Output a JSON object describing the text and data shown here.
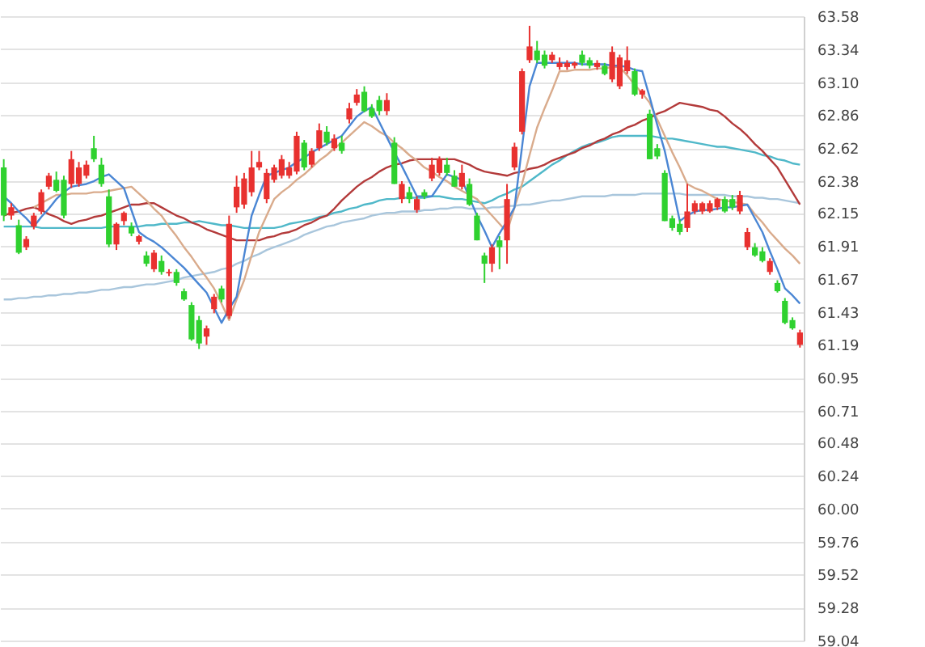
{
  "chart_data": {
    "type": "candlestick",
    "ylim": [
      59.04,
      63.58
    ],
    "yticks": [
      59.04,
      59.28,
      59.52,
      59.76,
      {
        "value": 60,
        "label": "60.00"
      },
      60.24,
      60.48,
      60.71,
      60.95,
      61.19,
      61.43,
      61.67,
      61.91,
      62.15,
      62.38,
      62.62,
      62.86,
      {
        "value": 63.1,
        "label": "63.10"
      },
      63.34,
      63.58
    ],
    "grid": "y",
    "categories": [
      null,
      null,
      null,
      null,
      null,
      null,
      null,
      null,
      null,
      null,
      null,
      null,
      null,
      null,
      null,
      null,
      null,
      null,
      null,
      null,
      null,
      null,
      null,
      null,
      null,
      null,
      null,
      null,
      null,
      null,
      null,
      null,
      null,
      null,
      null,
      null,
      null,
      null,
      null,
      null,
      null,
      null,
      null,
      null,
      null,
      null,
      null,
      null,
      null,
      null,
      null,
      null,
      null,
      null,
      null,
      null,
      null,
      null,
      null,
      null,
      null,
      null,
      null,
      null,
      null,
      null,
      null,
      null,
      null,
      null,
      null,
      null,
      null,
      null,
      null,
      null,
      null,
      null,
      null,
      null,
      null,
      null,
      null,
      null,
      null,
      null,
      null,
      null,
      null,
      null,
      null,
      null,
      null,
      null,
      null,
      null,
      null,
      null,
      null,
      null,
      null,
      null,
      null,
      null,
      null,
      null,
      null
    ],
    "ohlc": [
      [
        62.48,
        62.54,
        62.09,
        62.13
      ],
      [
        62.13,
        62.22,
        62.1,
        62.19
      ],
      [
        62.06,
        62.1,
        61.85,
        61.86
      ],
      [
        61.9,
        61.98,
        61.88,
        61.96
      ],
      [
        62.05,
        62.15,
        62.03,
        62.13
      ],
      [
        62.16,
        62.32,
        62.14,
        62.3
      ],
      [
        62.34,
        62.44,
        62.32,
        62.42
      ],
      [
        62.39,
        62.45,
        62.3,
        62.31
      ],
      [
        62.39,
        62.42,
        62.11,
        62.13
      ],
      [
        62.36,
        62.6,
        62.33,
        62.54
      ],
      [
        62.36,
        62.52,
        62.34,
        62.48
      ],
      [
        62.42,
        62.53,
        62.4,
        62.5
      ],
      [
        62.62,
        62.71,
        62.52,
        62.54
      ],
      [
        62.5,
        62.55,
        62.34,
        62.36
      ],
      [
        62.27,
        62.32,
        61.9,
        61.92
      ],
      [
        61.92,
        62.08,
        61.88,
        62.07
      ],
      [
        62.09,
        62.16,
        62.06,
        62.15
      ],
      [
        62.05,
        62.08,
        61.98,
        62.0
      ],
      [
        61.94,
        61.99,
        61.92,
        61.98
      ],
      [
        61.84,
        61.87,
        61.76,
        61.78
      ],
      [
        61.74,
        61.88,
        61.72,
        61.86
      ],
      [
        61.8,
        61.84,
        61.7,
        61.72
      ],
      [
        61.71,
        61.74,
        61.69,
        61.72
      ],
      [
        61.72,
        61.74,
        61.62,
        61.64
      ],
      [
        61.58,
        61.6,
        61.51,
        61.52
      ],
      [
        61.48,
        61.5,
        61.22,
        61.23
      ],
      [
        61.37,
        61.4,
        61.16,
        61.2
      ],
      [
        61.25,
        61.33,
        61.19,
        61.31
      ],
      [
        61.45,
        61.56,
        61.42,
        61.54
      ],
      [
        61.6,
        61.62,
        61.5,
        61.52
      ],
      [
        61.4,
        62.13,
        61.38,
        62.07
      ],
      [
        62.19,
        62.42,
        62.15,
        62.34
      ],
      [
        62.21,
        62.44,
        62.18,
        62.4
      ],
      [
        62.3,
        62.6,
        62.27,
        62.48
      ],
      [
        62.48,
        62.6,
        62.46,
        62.52
      ],
      [
        62.25,
        62.47,
        62.22,
        62.44
      ],
      [
        62.39,
        62.5,
        62.37,
        62.48
      ],
      [
        62.42,
        62.57,
        62.4,
        62.54
      ],
      [
        62.42,
        62.52,
        62.4,
        62.48
      ],
      [
        62.45,
        62.74,
        62.43,
        62.71
      ],
      [
        62.66,
        62.68,
        62.46,
        62.48
      ],
      [
        62.5,
        62.62,
        62.48,
        62.6
      ],
      [
        62.62,
        62.8,
        62.6,
        62.75
      ],
      [
        62.74,
        62.78,
        62.64,
        62.66
      ],
      [
        62.62,
        62.72,
        62.6,
        62.69
      ],
      [
        62.66,
        62.71,
        62.58,
        62.6
      ],
      [
        62.83,
        62.95,
        62.8,
        62.91
      ],
      [
        62.95,
        63.05,
        62.93,
        63.01
      ],
      [
        63.03,
        63.07,
        62.88,
        62.89
      ],
      [
        62.91,
        62.94,
        62.84,
        62.85
      ],
      [
        62.97,
        63.0,
        62.86,
        62.89
      ],
      [
        62.89,
        63.02,
        62.86,
        62.97
      ],
      [
        62.66,
        62.7,
        62.36,
        62.36
      ],
      [
        62.25,
        62.38,
        62.22,
        62.36
      ],
      [
        62.3,
        62.34,
        62.22,
        62.25
      ],
      [
        62.17,
        62.27,
        62.15,
        62.25
      ],
      [
        62.3,
        62.32,
        62.25,
        62.27
      ],
      [
        62.4,
        62.55,
        62.38,
        62.5
      ],
      [
        62.44,
        62.56,
        62.42,
        62.54
      ],
      [
        62.5,
        62.55,
        62.42,
        62.44
      ],
      [
        62.42,
        62.46,
        62.34,
        62.34
      ],
      [
        62.34,
        62.5,
        62.32,
        62.44
      ],
      [
        62.36,
        62.4,
        62.2,
        62.21
      ],
      [
        62.13,
        62.15,
        61.95,
        61.95
      ],
      [
        61.84,
        61.86,
        61.64,
        61.78
      ],
      [
        61.78,
        61.92,
        61.72,
        61.9
      ],
      [
        61.95,
        61.98,
        61.74,
        61.9
      ],
      [
        61.95,
        62.36,
        61.78,
        62.25
      ],
      [
        62.48,
        62.66,
        62.46,
        62.63
      ],
      [
        62.74,
        63.2,
        62.72,
        63.18
      ],
      [
        63.26,
        63.51,
        63.24,
        63.36
      ],
      [
        63.33,
        63.4,
        63.24,
        63.26
      ],
      [
        63.3,
        63.33,
        63.2,
        63.22
      ],
      [
        63.26,
        63.32,
        63.24,
        63.3
      ],
      [
        63.21,
        63.28,
        63.19,
        63.24
      ],
      [
        63.21,
        63.26,
        63.19,
        63.24
      ],
      [
        63.22,
        63.25,
        63.2,
        63.24
      ],
      [
        63.3,
        63.33,
        63.22,
        63.24
      ],
      [
        63.26,
        63.28,
        63.2,
        63.22
      ],
      [
        63.21,
        63.26,
        63.19,
        63.24
      ],
      [
        63.22,
        63.24,
        63.15,
        63.16
      ],
      [
        63.12,
        63.36,
        63.1,
        63.32
      ],
      [
        63.07,
        63.3,
        63.05,
        63.28
      ],
      [
        63.18,
        63.36,
        63.16,
        63.26
      ],
      [
        63.18,
        63.2,
        63.0,
        63.01
      ],
      [
        63.01,
        63.05,
        62.98,
        63.04
      ],
      [
        62.87,
        62.9,
        62.54,
        62.54
      ],
      [
        62.62,
        62.65,
        62.54,
        62.56
      ],
      [
        62.44,
        62.46,
        62.09,
        62.09
      ],
      [
        62.11,
        62.13,
        62.02,
        62.04
      ],
      [
        62.07,
        62.1,
        61.99,
        62.01
      ],
      [
        62.04,
        62.36,
        62.01,
        62.16
      ],
      [
        62.16,
        62.24,
        62.14,
        62.22
      ],
      [
        62.16,
        62.23,
        62.14,
        62.22
      ],
      [
        62.16,
        62.24,
        62.15,
        62.22
      ],
      [
        62.19,
        62.26,
        62.17,
        62.25
      ],
      [
        62.25,
        62.27,
        62.15,
        62.16
      ],
      [
        62.25,
        62.28,
        62.17,
        62.19
      ],
      [
        62.16,
        62.31,
        62.14,
        62.28
      ],
      [
        61.9,
        62.04,
        61.88,
        62.01
      ],
      [
        61.9,
        61.93,
        61.83,
        61.84
      ],
      [
        61.87,
        61.9,
        61.79,
        61.8
      ],
      [
        61.72,
        61.82,
        61.7,
        61.8
      ],
      [
        61.64,
        61.66,
        61.57,
        61.58
      ],
      [
        61.51,
        61.53,
        61.34,
        61.35
      ],
      [
        61.37,
        61.39,
        61.3,
        61.31
      ],
      [
        61.19,
        61.3,
        61.17,
        61.28
      ]
    ],
    "colors": [
      "#2fd12f",
      "#e8312f",
      "#2fd12f",
      "#e8312f",
      "#e8312f",
      "#e8312f",
      "#e8312f",
      "#2fd12f",
      "#2fd12f",
      "#e8312f",
      "#e8312f",
      "#e8312f",
      "#2fd12f",
      "#2fd12f",
      "#2fd12f",
      "#e8312f",
      "#e8312f",
      "#2fd12f",
      "#e8312f",
      "#2fd12f",
      "#e8312f",
      "#2fd12f",
      "#e8312f",
      "#2fd12f",
      "#2fd12f",
      "#2fd12f",
      "#2fd12f",
      "#e8312f",
      "#e8312f",
      "#2fd12f",
      "#e8312f",
      "#e8312f",
      "#e8312f",
      "#e8312f",
      "#e8312f",
      "#e8312f",
      "#e8312f",
      "#e8312f",
      "#e8312f",
      "#e8312f",
      "#2fd12f",
      "#e8312f",
      "#e8312f",
      "#2fd12f",
      "#e8312f",
      "#2fd12f",
      "#e8312f",
      "#e8312f",
      "#2fd12f",
      "#2fd12f",
      "#2fd12f",
      "#e8312f",
      "#2fd12f",
      "#e8312f",
      "#2fd12f",
      "#e8312f",
      "#2fd12f",
      "#e8312f",
      "#e8312f",
      "#2fd12f",
      "#2fd12f",
      "#e8312f",
      "#2fd12f",
      "#2fd12f",
      "#2fd12f",
      "#e8312f",
      "#2fd12f",
      "#e8312f",
      "#e8312f",
      "#e8312f",
      "#e8312f",
      "#2fd12f",
      "#2fd12f",
      "#e8312f",
      "#e8312f",
      "#e8312f",
      "#e8312f",
      "#2fd12f",
      "#2fd12f",
      "#e8312f",
      "#2fd12f",
      "#e8312f",
      "#e8312f",
      "#e8312f",
      "#2fd12f",
      "#e8312f",
      "#2fd12f",
      "#2fd12f",
      "#2fd12f",
      "#2fd12f",
      "#2fd12f",
      "#e8312f",
      "#e8312f",
      "#e8312f",
      "#e8312f",
      "#e8312f",
      "#2fd12f",
      "#2fd12f",
      "#e8312f",
      "#e8312f",
      "#2fd12f",
      "#2fd12f",
      "#e8312f",
      "#2fd12f",
      "#2fd12f",
      "#2fd12f",
      "#e8312f"
    ],
    "series": [
      {
        "type": "line",
        "color": "#a9c6dc",
        "values": [
          61.52,
          61.52,
          61.53,
          61.53,
          61.54,
          61.54,
          61.55,
          61.55,
          61.56,
          61.56,
          61.57,
          61.57,
          61.58,
          61.59,
          61.59,
          61.6,
          61.61,
          61.61,
          61.62,
          61.63,
          61.63,
          61.64,
          61.65,
          61.66,
          61.68,
          61.69,
          61.7,
          61.71,
          61.72,
          61.74,
          61.75,
          61.78,
          61.8,
          61.83,
          61.85,
          61.88,
          61.9,
          61.92,
          61.94,
          61.96,
          61.99,
          62.01,
          62.03,
          62.05,
          62.06,
          62.08,
          62.09,
          62.1,
          62.11,
          62.13,
          62.14,
          62.15,
          62.15,
          62.16,
          62.16,
          62.16,
          62.17,
          62.17,
          62.18,
          62.18,
          62.19,
          62.19,
          62.18,
          62.18,
          62.18,
          62.19,
          62.19,
          62.2,
          62.2,
          62.21,
          62.21,
          62.22,
          62.23,
          62.24,
          62.24,
          62.25,
          62.26,
          62.27,
          62.27,
          62.27,
          62.27,
          62.28,
          62.28,
          62.28,
          62.28,
          62.29,
          62.29,
          62.29,
          62.29,
          62.29,
          62.29,
          62.28,
          62.28,
          62.28,
          62.28,
          62.28,
          62.28,
          62.27,
          62.27,
          62.27,
          62.26,
          62.26,
          62.25,
          62.25,
          62.24,
          62.23,
          62.22
        ]
      },
      {
        "type": "line",
        "color": "#4fb8c9",
        "values": [
          62.05,
          62.05,
          62.05,
          62.05,
          62.05,
          62.04,
          62.04,
          62.04,
          62.04,
          62.04,
          62.04,
          62.04,
          62.04,
          62.04,
          62.05,
          62.05,
          62.05,
          62.05,
          62.05,
          62.06,
          62.06,
          62.07,
          62.07,
          62.07,
          62.08,
          62.08,
          62.09,
          62.08,
          62.07,
          62.06,
          62.06,
          62.05,
          62.04,
          62.04,
          62.04,
          62.04,
          62.04,
          62.05,
          62.07,
          62.08,
          62.09,
          62.1,
          62.12,
          62.13,
          62.15,
          62.16,
          62.18,
          62.19,
          62.21,
          62.22,
          62.24,
          62.25,
          62.25,
          62.26,
          62.26,
          62.26,
          62.26,
          62.27,
          62.27,
          62.26,
          62.25,
          62.25,
          62.24,
          62.23,
          62.22,
          62.24,
          62.27,
          62.29,
          62.32,
          62.34,
          62.38,
          62.42,
          62.46,
          62.5,
          62.53,
          62.57,
          62.6,
          62.63,
          62.65,
          62.66,
          62.68,
          62.7,
          62.71,
          62.71,
          62.71,
          62.71,
          62.71,
          62.7,
          62.69,
          62.69,
          62.68,
          62.67,
          62.66,
          62.65,
          62.64,
          62.63,
          62.63,
          62.62,
          62.61,
          62.6,
          62.59,
          62.57,
          62.56,
          62.54,
          62.53,
          62.51,
          62.5
        ]
      },
      {
        "type": "line",
        "color": "#b33a3a",
        "values": [
          62.13,
          62.15,
          62.16,
          62.18,
          62.19,
          62.17,
          62.14,
          62.12,
          62.09,
          62.07,
          62.09,
          62.1,
          62.12,
          62.13,
          62.15,
          62.17,
          62.19,
          62.21,
          62.21,
          62.22,
          62.22,
          62.19,
          62.16,
          62.13,
          62.11,
          62.08,
          62.06,
          62.03,
          62.01,
          61.99,
          61.97,
          61.95,
          61.95,
          61.95,
          61.95,
          61.97,
          61.98,
          62.0,
          62.01,
          62.03,
          62.06,
          62.08,
          62.11,
          62.13,
          62.18,
          62.24,
          62.29,
          62.34,
          62.38,
          62.41,
          62.45,
          62.48,
          62.5,
          62.51,
          62.53,
          62.54,
          62.54,
          62.54,
          62.54,
          62.54,
          62.54,
          62.52,
          62.5,
          62.47,
          62.45,
          62.44,
          62.43,
          62.42,
          62.44,
          62.45,
          62.47,
          62.48,
          62.5,
          62.53,
          62.55,
          62.57,
          62.59,
          62.62,
          62.64,
          62.67,
          62.69,
          62.72,
          62.74,
          62.77,
          62.79,
          62.82,
          62.84,
          62.87,
          62.89,
          62.92,
          62.95,
          62.94,
          62.93,
          62.92,
          62.9,
          62.89,
          62.85,
          62.8,
          62.76,
          62.71,
          62.65,
          62.6,
          62.54,
          62.48,
          62.39,
          62.3,
          62.21
        ]
      },
      {
        "type": "line",
        "color": "#d9ab8c",
        "values": [
          null,
          null,
          null,
          null,
          62.19,
          62.22,
          62.25,
          62.28,
          62.28,
          62.29,
          62.29,
          62.29,
          62.3,
          62.3,
          62.31,
          62.32,
          62.33,
          62.34,
          62.29,
          62.24,
          62.18,
          62.13,
          62.05,
          61.98,
          61.9,
          61.83,
          61.75,
          61.68,
          61.6,
          61.49,
          61.37,
          61.52,
          61.66,
          61.84,
          62.01,
          62.13,
          62.25,
          62.3,
          62.34,
          62.39,
          62.43,
          62.48,
          62.53,
          62.57,
          62.62,
          62.66,
          62.71,
          62.76,
          62.81,
          62.78,
          62.74,
          62.71,
          62.66,
          62.62,
          62.57,
          62.53,
          62.48,
          62.45,
          62.41,
          62.38,
          62.34,
          62.31,
          62.28,
          62.25,
          62.19,
          62.13,
          62.07,
          62.01,
          62.19,
          62.36,
          62.57,
          62.77,
          62.91,
          63.04,
          63.18,
          63.18,
          63.19,
          63.19,
          63.19,
          63.2,
          63.2,
          63.21,
          63.21,
          63.15,
          63.08,
          63.02,
          62.95,
          62.83,
          62.71,
          62.59,
          62.48,
          62.36,
          62.33,
          62.31,
          62.28,
          62.25,
          62.24,
          62.23,
          62.22,
          62.21,
          62.14,
          62.08,
          62.01,
          61.95,
          61.89,
          61.84,
          61.78
        ]
      },
      {
        "type": "line",
        "color": "#4a86d4",
        "values": [
          62.27,
          62.22,
          62.16,
          62.11,
          62.05,
          62.12,
          62.18,
          62.25,
          62.3,
          62.34,
          62.35,
          62.36,
          62.38,
          62.41,
          62.43,
          62.38,
          62.33,
          62.17,
          62.01,
          61.97,
          61.94,
          61.9,
          61.85,
          61.8,
          61.75,
          61.69,
          61.63,
          61.57,
          61.46,
          61.35,
          61.45,
          61.54,
          61.84,
          62.13,
          62.28,
          62.42,
          62.44,
          62.46,
          62.48,
          62.52,
          62.55,
          62.59,
          62.62,
          62.65,
          62.68,
          62.71,
          62.78,
          62.85,
          62.89,
          62.92,
          62.81,
          62.7,
          62.59,
          62.49,
          62.38,
          62.27,
          62.27,
          62.27,
          62.35,
          62.43,
          62.41,
          62.39,
          62.26,
          62.13,
          62.02,
          61.9,
          62.0,
          62.09,
          62.19,
          62.63,
          63.07,
          63.24,
          63.24,
          63.24,
          63.24,
          63.24,
          63.24,
          63.23,
          63.23,
          63.23,
          63.23,
          63.22,
          63.22,
          63.21,
          63.19,
          63.18,
          62.99,
          62.79,
          62.6,
          62.35,
          62.09,
          62.13,
          62.16,
          62.17,
          62.17,
          62.18,
          62.19,
          62.19,
          62.2,
          62.21,
          62.11,
          62.01,
          61.87,
          61.74,
          61.6,
          61.55,
          61.49
        ]
      }
    ]
  }
}
